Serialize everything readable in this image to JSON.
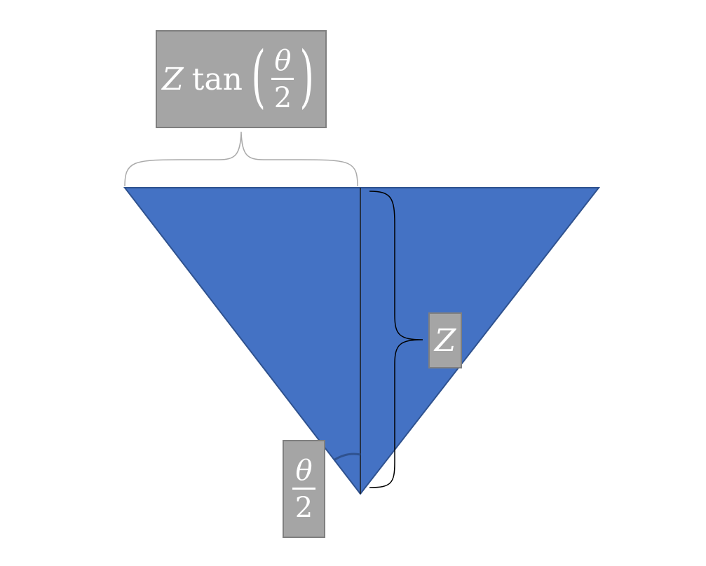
{
  "diagram": {
    "colors": {
      "fill": "#4472c4",
      "stroke": "#2f528f",
      "label_bg": "#a5a5a5",
      "label_border": "#7f7f7f",
      "brace": "#aaaaaa",
      "line": "#000000"
    },
    "labels": {
      "top": {
        "var": "Z",
        "func": "tan",
        "numerator": "θ",
        "denominator": "2",
        "paren_open": "(",
        "paren_close": ")"
      },
      "right": {
        "var": "Z"
      },
      "bottom": {
        "numerator": "θ",
        "denominator": "2"
      }
    }
  }
}
